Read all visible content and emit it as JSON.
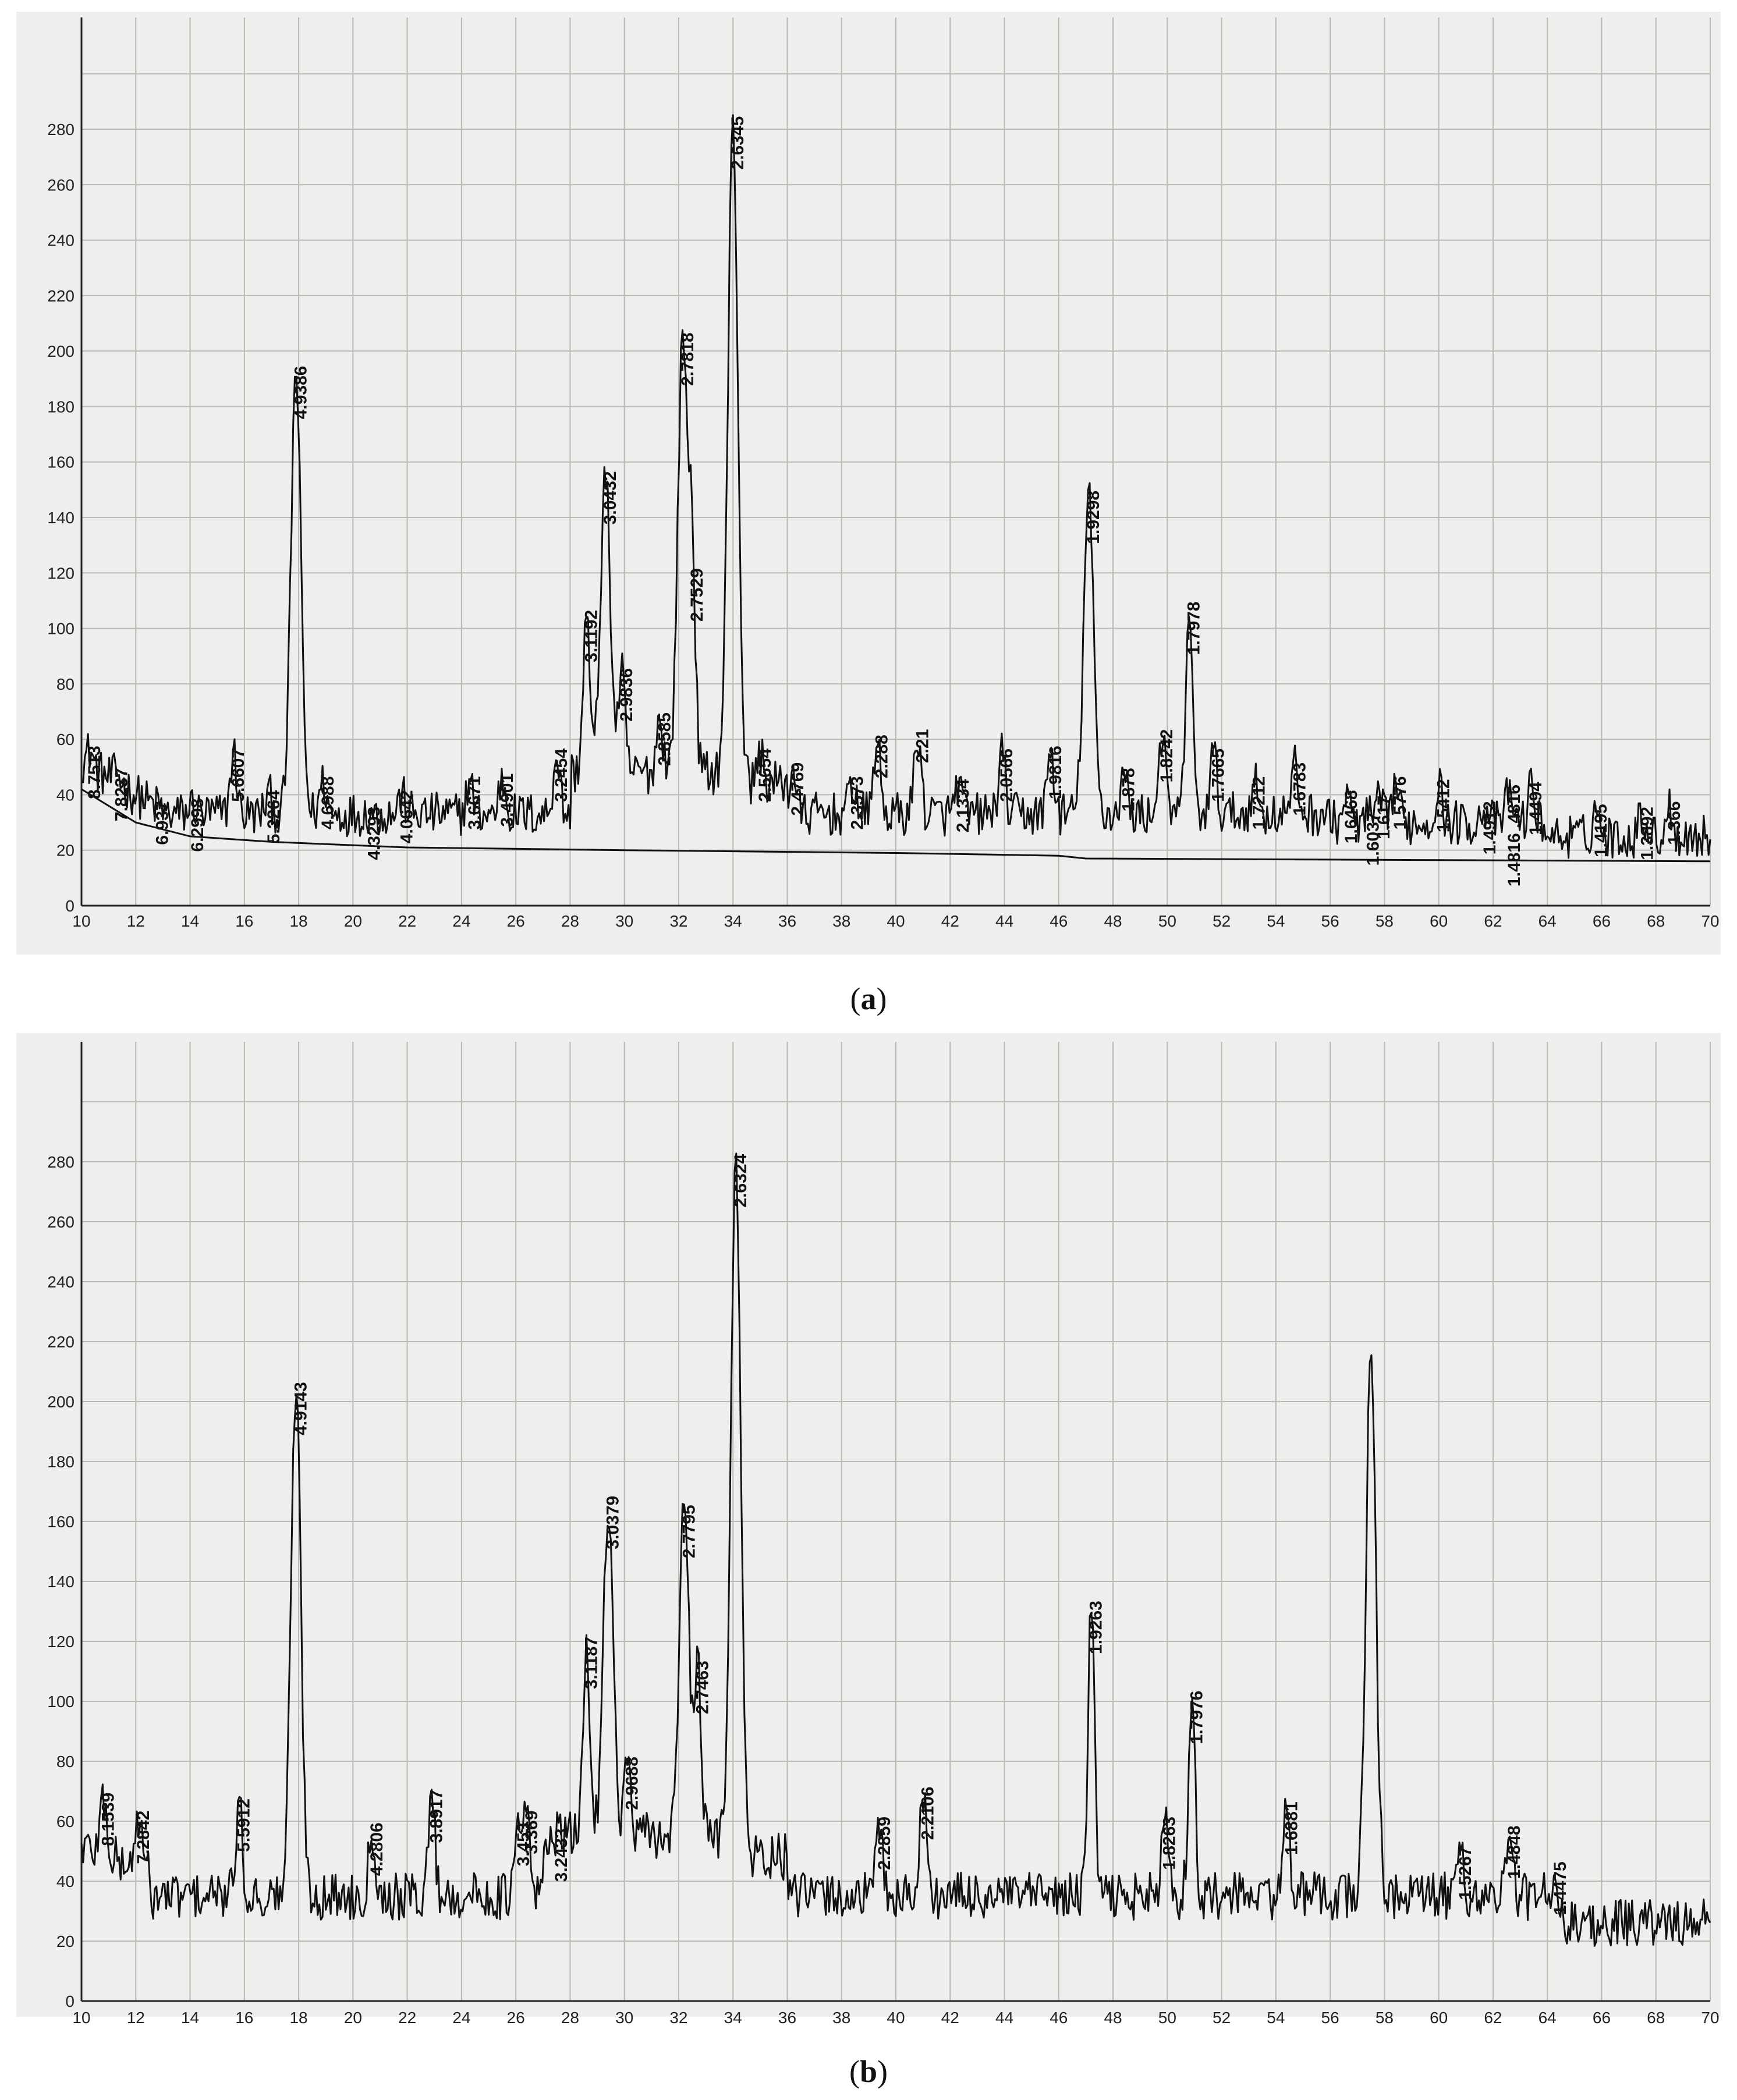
{
  "captions": {
    "a_letter": "a",
    "b_letter": "b"
  },
  "chart_data": [
    {
      "panel": "a",
      "type": "line",
      "title": "",
      "xlabel": "",
      "ylabel": "",
      "xlim": [
        10,
        70
      ],
      "ylim": [
        0,
        300
      ],
      "grid": true,
      "x_ticks": [
        10,
        12,
        14,
        16,
        18,
        20,
        22,
        24,
        26,
        28,
        30,
        32,
        34,
        36,
        38,
        40,
        42,
        44,
        46,
        48,
        50,
        52,
        54,
        56,
        58,
        60,
        62,
        64,
        66,
        68,
        70
      ],
      "y_ticks": [
        0,
        20,
        40,
        60,
        80,
        100,
        120,
        140,
        160,
        180,
        200,
        220,
        240,
        260,
        280
      ],
      "baseline": [
        [
          10,
          42
        ],
        [
          12,
          30
        ],
        [
          14,
          25
        ],
        [
          17,
          23
        ],
        [
          22,
          21
        ],
        [
          30,
          20
        ],
        [
          40,
          19
        ],
        [
          46,
          18
        ],
        [
          47,
          17
        ],
        [
          70,
          16
        ]
      ],
      "peaks": [
        {
          "x": 10.3,
          "y": 56,
          "label": "8.7513"
        },
        {
          "x": 11.3,
          "y": 48,
          "label": "7.8237"
        },
        {
          "x": 12.8,
          "y": 36,
          "label": "6.937"
        },
        {
          "x": 14.1,
          "y": 37,
          "label": "6.2998"
        },
        {
          "x": 15.6,
          "y": 55,
          "label": "5.6607"
        },
        {
          "x": 16.9,
          "y": 40,
          "label": "5.2264"
        },
        {
          "x": 17.9,
          "y": 193,
          "label": "4.9386"
        },
        {
          "x": 18.9,
          "y": 45,
          "label": "4.6988"
        },
        {
          "x": 20.6,
          "y": 34,
          "label": "4.3293"
        },
        {
          "x": 21.8,
          "y": 40,
          "label": "4.0642"
        },
        {
          "x": 24.3,
          "y": 45,
          "label": "3.6671"
        },
        {
          "x": 25.5,
          "y": 46,
          "label": "3.4901"
        },
        {
          "x": 27.5,
          "y": 55,
          "label": "3.2454"
        },
        {
          "x": 28.6,
          "y": 105,
          "label": "3.1192"
        },
        {
          "x": 29.3,
          "y": 155,
          "label": "3.0432"
        },
        {
          "x": 29.9,
          "y": 84,
          "label": "2.9836"
        },
        {
          "x": 31.3,
          "y": 68,
          "label": "2.8585"
        },
        {
          "x": 32.15,
          "y": 205,
          "label": "2.7818"
        },
        {
          "x": 32.5,
          "y": 120,
          "label": "2.7529"
        },
        {
          "x": 34.0,
          "y": 283,
          "label": "2.6345"
        },
        {
          "x": 35.0,
          "y": 55,
          "label": "2.5654"
        },
        {
          "x": 36.2,
          "y": 50,
          "label": "2.4769"
        },
        {
          "x": 38.4,
          "y": 45,
          "label": "2.3573"
        },
        {
          "x": 39.3,
          "y": 60,
          "label": "2.288"
        },
        {
          "x": 40.8,
          "y": 62,
          "label": "2.21"
        },
        {
          "x": 42.3,
          "y": 44,
          "label": "2.1334"
        },
        {
          "x": 43.9,
          "y": 55,
          "label": "2.0566"
        },
        {
          "x": 45.7,
          "y": 56,
          "label": "1.9816"
        },
        {
          "x": 47.1,
          "y": 148,
          "label": "1.9298"
        },
        {
          "x": 48.4,
          "y": 48,
          "label": "1.878"
        },
        {
          "x": 49.8,
          "y": 62,
          "label": "1.8242"
        },
        {
          "x": 50.8,
          "y": 108,
          "label": "1.7978"
        },
        {
          "x": 51.7,
          "y": 55,
          "label": "1.7665"
        },
        {
          "x": 53.2,
          "y": 45,
          "label": "1.7212"
        },
        {
          "x": 54.7,
          "y": 50,
          "label": "1.6783"
        },
        {
          "x": 56.6,
          "y": 40,
          "label": "1.6468"
        },
        {
          "x": 57.4,
          "y": 32,
          "label": "1.6037"
        },
        {
          "x": 57.8,
          "y": 38,
          "label": "1.617"
        },
        {
          "x": 58.4,
          "y": 45,
          "label": "1.5776"
        },
        {
          "x": 60.0,
          "y": 44,
          "label": "1.5412"
        },
        {
          "x": 61.7,
          "y": 36,
          "label": "1.4912"
        },
        {
          "x": 62.6,
          "y": 42,
          "label": "1.4816 .4816"
        },
        {
          "x": 63.4,
          "y": 43,
          "label": "1.4494"
        },
        {
          "x": 65.8,
          "y": 35,
          "label": "1.4195"
        },
        {
          "x": 67.5,
          "y": 34,
          "label": "1.3892"
        },
        {
          "x": 68.5,
          "y": 36,
          "label": "1.366"
        }
      ],
      "noise_level": 33
    },
    {
      "panel": "b",
      "type": "line",
      "title": "",
      "xlabel": "",
      "ylabel": "",
      "xlim": [
        10,
        70
      ],
      "ylim": [
        0,
        300
      ],
      "grid": true,
      "x_ticks": [
        10,
        12,
        14,
        16,
        18,
        20,
        22,
        24,
        26,
        28,
        30,
        32,
        34,
        36,
        38,
        40,
        42,
        44,
        46,
        48,
        50,
        52,
        54,
        56,
        58,
        60,
        62,
        64,
        66,
        68,
        70
      ],
      "y_ticks": [
        0,
        20,
        40,
        60,
        80,
        100,
        120,
        140,
        160,
        180,
        200,
        220,
        240,
        260,
        280
      ],
      "peaks": [
        {
          "x": 10.8,
          "y": 68,
          "label": "8.1539"
        },
        {
          "x": 12.1,
          "y": 62,
          "label": "7.2842"
        },
        {
          "x": 15.8,
          "y": 66,
          "label": "5.5912"
        },
        {
          "x": 17.9,
          "y": 205,
          "label": "4.9143"
        },
        {
          "x": 20.7,
          "y": 58,
          "label": "4.2806"
        },
        {
          "x": 22.9,
          "y": 69,
          "label": "3.8917"
        },
        {
          "x": 26.1,
          "y": 58,
          "label": "3.453"
        },
        {
          "x": 26.4,
          "y": 62,
          "label": "3.369"
        },
        {
          "x": 27.5,
          "y": 56,
          "label": "3.2433"
        },
        {
          "x": 28.6,
          "y": 120,
          "label": "3.1187"
        },
        {
          "x": 29.4,
          "y": 167,
          "label": "3.0379"
        },
        {
          "x": 30.1,
          "y": 80,
          "label": "2.9688"
        },
        {
          "x": 32.2,
          "y": 164,
          "label": "2.7795"
        },
        {
          "x": 32.7,
          "y": 112,
          "label": "2.7463"
        },
        {
          "x": 34.1,
          "y": 281,
          "label": "2.6324"
        },
        {
          "x": 39.4,
          "y": 60,
          "label": "2.2859"
        },
        {
          "x": 41.0,
          "y": 70,
          "label": "2.2106"
        },
        {
          "x": 47.2,
          "y": 132,
          "label": "1.9263"
        },
        {
          "x": 49.9,
          "y": 60,
          "label": "1.8263"
        },
        {
          "x": 50.9,
          "y": 102,
          "label": "1.7976"
        },
        {
          "x": 54.4,
          "y": 65,
          "label": "1.6881"
        },
        {
          "x": 57.5,
          "y": 217,
          "label": ""
        },
        {
          "x": 60.8,
          "y": 50,
          "label": "1.5267"
        },
        {
          "x": 62.6,
          "y": 57,
          "label": "1.4848"
        },
        {
          "x": 64.3,
          "y": 45,
          "label": "1.4475"
        }
      ],
      "noise_level": 35
    }
  ]
}
